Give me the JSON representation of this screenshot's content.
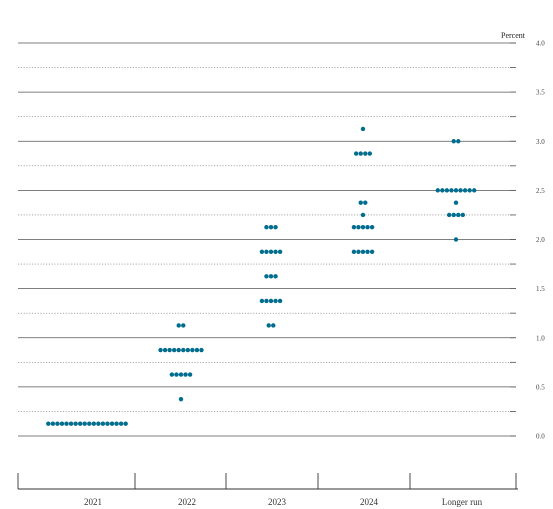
{
  "chart_data": {
    "type": "scatter",
    "ylabel": "Percent",
    "ylim": [
      0,
      4
    ],
    "yticks": [
      "0.0",
      "0.5",
      "1.0",
      "1.5",
      "2.0",
      "2.5",
      "3.0",
      "3.5",
      "4.0"
    ],
    "grid": true,
    "categories": [
      "2021",
      "2022",
      "2023",
      "2024",
      "Longer run"
    ],
    "dot_color": "#006d8f",
    "points": [
      {
        "category": "2021",
        "y": 0.125,
        "count": 18
      },
      {
        "category": "2022",
        "y": 0.375,
        "count": 1
      },
      {
        "category": "2022",
        "y": 0.625,
        "count": 5
      },
      {
        "category": "2022",
        "y": 0.875,
        "count": 10
      },
      {
        "category": "2022",
        "y": 1.125,
        "count": 2
      },
      {
        "category": "2023",
        "y": 1.125,
        "count": 2
      },
      {
        "category": "2023",
        "y": 1.375,
        "count": 5
      },
      {
        "category": "2023",
        "y": 1.625,
        "count": 3
      },
      {
        "category": "2023",
        "y": 1.875,
        "count": 5
      },
      {
        "category": "2023",
        "y": 2.125,
        "count": 3
      },
      {
        "category": "2024",
        "y": 1.875,
        "count": 5
      },
      {
        "category": "2024",
        "y": 2.125,
        "count": 5
      },
      {
        "category": "2024",
        "y": 2.25,
        "count": 1
      },
      {
        "category": "2024",
        "y": 2.375,
        "count": 2
      },
      {
        "category": "2024",
        "y": 2.875,
        "count": 4
      },
      {
        "category": "2024",
        "y": 3.125,
        "count": 1
      },
      {
        "category": "Longer run",
        "y": 2.0,
        "count": 1
      },
      {
        "category": "Longer run",
        "y": 2.25,
        "count": 4
      },
      {
        "category": "Longer run",
        "y": 2.375,
        "count": 1
      },
      {
        "category": "Longer run",
        "y": 2.5,
        "count": 9
      },
      {
        "category": "Longer run",
        "y": 3.0,
        "count": 2
      }
    ]
  }
}
